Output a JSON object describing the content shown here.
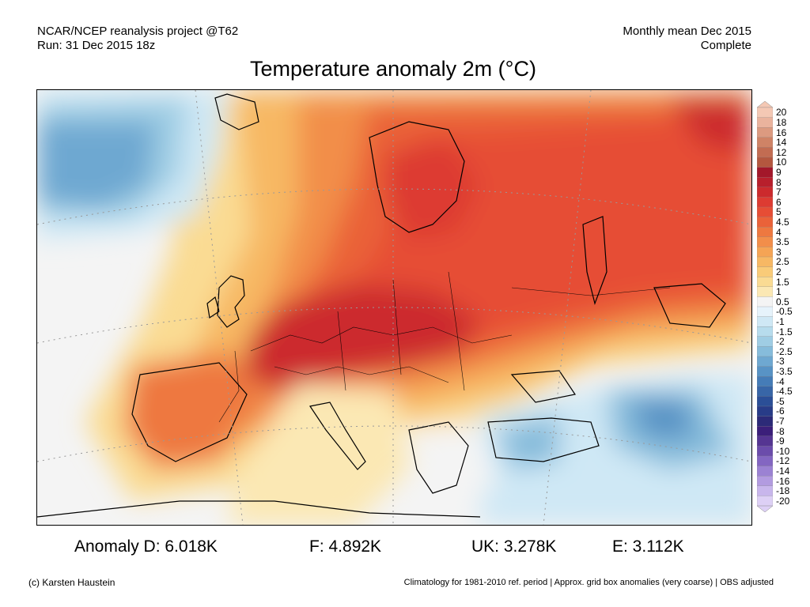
{
  "header": {
    "left_line1": "NCAR/NCEP reanalysis project @T62",
    "left_line2": "Run: 31 Dec 2015 18z",
    "right_line1": "Monthly mean Dec 2015",
    "right_line2": "Complete"
  },
  "title": "Temperature anomaly 2m (°C)",
  "colorbar": {
    "labels": [
      "20",
      "18",
      "16",
      "14",
      "12",
      "10",
      "9",
      "8",
      "7",
      "6",
      "5",
      "4.5",
      "4",
      "3.5",
      "3",
      "2.5",
      "2",
      "1.5",
      "1",
      "0.5",
      "-0.5",
      "-1",
      "-1.5",
      "-2",
      "-2.5",
      "-3",
      "-3.5",
      "-4",
      "-4.5",
      "-5",
      "-6",
      "-7",
      "-8",
      "-9",
      "-10",
      "-12",
      "-14",
      "-16",
      "-18",
      "-20"
    ],
    "colors": [
      "#f4c8b4",
      "#eab39d",
      "#dc9a80",
      "#cf8366",
      "#c26c52",
      "#b4573f",
      "#a3172a",
      "#b81f2c",
      "#cc2a2d",
      "#dd3b32",
      "#e64d35",
      "#ea6239",
      "#ee7840",
      "#f28e4a",
      "#f5a455",
      "#f7b864",
      "#f9cb78",
      "#fadb93",
      "#fbe8b4",
      "#f4f4f4",
      "#e6f3fb",
      "#cfe8f5",
      "#b7dced",
      "#9fcde4",
      "#86bcdb",
      "#6ea8d1",
      "#5893c5",
      "#457cb7",
      "#3866a7",
      "#2b4f97",
      "#283c88",
      "#2c2a78",
      "#3b1f7a",
      "#553592",
      "#6b4cab",
      "#8366c2",
      "#9b82d3",
      "#b29be0",
      "#c8b6ec",
      "#ddd0f5"
    ]
  },
  "anomalies": [
    {
      "label": "Anomaly D: 6.018K"
    },
    {
      "label": "F: 4.892K"
    },
    {
      "label": "UK: 3.278K"
    },
    {
      "label": "E: 3.112K"
    }
  ],
  "footer": {
    "left": "(c) Karsten Haustein",
    "right": "Climatology for 1981-2010 ref. period | Approx. grid box anomalies (very coarse) | OBS adjusted"
  }
}
